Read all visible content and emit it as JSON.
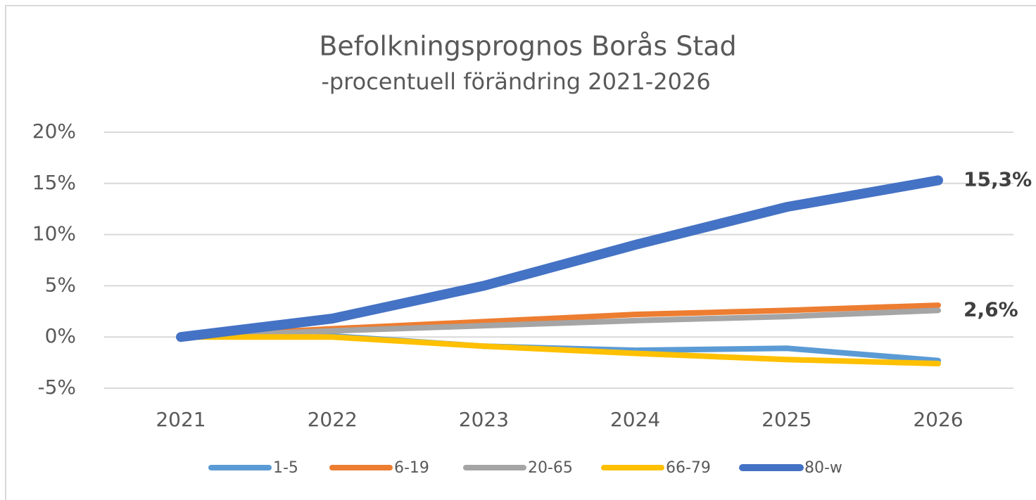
{
  "chart_data": {
    "type": "line",
    "title": "Befolkningsprognos Borås Stad",
    "subtitle": "-procentuell förändring 2021-2026",
    "categories": [
      "2021",
      "2022",
      "2023",
      "2024",
      "2025",
      "2026"
    ],
    "series": [
      {
        "name": "1-5",
        "color": "#5b9bd5",
        "values": [
          0,
          0.1,
          -0.9,
          -1.3,
          -1.1,
          -2.3
        ]
      },
      {
        "name": "6-19",
        "color": "#ed7d31",
        "values": [
          0,
          0.8,
          1.5,
          2.2,
          2.6,
          3.1
        ]
      },
      {
        "name": "20-65",
        "color": "#a5a5a5",
        "values": [
          0,
          0.6,
          1.1,
          1.6,
          2.0,
          2.6
        ],
        "value_labels": [
          null,
          null,
          null,
          null,
          null,
          "2,6%"
        ]
      },
      {
        "name": "66-79",
        "color": "#ffc000",
        "values": [
          0,
          0,
          -0.9,
          -1.6,
          -2.2,
          -2.6
        ]
      },
      {
        "name": "80-w",
        "color": "#4472c4",
        "values": [
          0,
          1.8,
          5.0,
          9.0,
          12.7,
          15.3
        ],
        "value_labels": [
          null,
          null,
          null,
          null,
          null,
          "15,3%"
        ]
      }
    ],
    "ylim": [
      -5,
      20
    ],
    "yticks": [
      {
        "value": -5,
        "label": "-5%"
      },
      {
        "value": 0,
        "label": "0%"
      },
      {
        "value": 5,
        "label": "5%"
      },
      {
        "value": 10,
        "label": "10%"
      },
      {
        "value": 15,
        "label": "15%"
      },
      {
        "value": 20,
        "label": "20%"
      }
    ],
    "grid": true,
    "legend": "bottom"
  }
}
